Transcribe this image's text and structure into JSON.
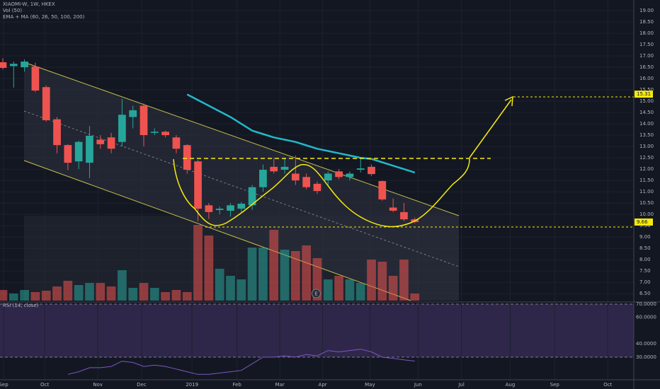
{
  "chart_data": {
    "type": "candlestick",
    "title": "XIAOMI-W, 1W, HKEX",
    "volume_label": "Vol (50)",
    "ema_label": "EMA + MA (60, 26, 50, 100, 200)",
    "rsi_label": "RSI (14, close)",
    "up_color": "#26a69a",
    "down_color": "#ef5350",
    "ema_color": "#22b8c8",
    "rsi_color": "#7e57c2",
    "candles": {
      "open": [
        16.72,
        16.55,
        16.5,
        16.53,
        15.62,
        14.2,
        13.06,
        12.34,
        12.28,
        13.3,
        13.4,
        13.2,
        14.3,
        14.8,
        13.6,
        13.65,
        13.4,
        13.06,
        12.34,
        10.4,
        10.19,
        10.16,
        10.25,
        10.4,
        11.2,
        12.1,
        11.97,
        11.8,
        11.65,
        11.35,
        11.5,
        11.9,
        11.65,
        11.97,
        12.1,
        11.47,
        10.3,
        10.1,
        9.78
      ],
      "high": [
        16.9,
        16.75,
        16.85,
        16.7,
        15.7,
        14.3,
        13.1,
        13.25,
        13.9,
        13.5,
        13.6,
        15.1,
        14.8,
        14.9,
        13.8,
        13.7,
        13.5,
        13.1,
        12.4,
        10.5,
        10.35,
        10.5,
        10.55,
        11.3,
        12.2,
        12.5,
        12.5,
        12.6,
        11.8,
        11.45,
        11.9,
        12.0,
        11.9,
        12.5,
        12.2,
        11.5,
        10.7,
        10.5,
        9.85
      ],
      "low": [
        16.4,
        15.6,
        16.3,
        15.4,
        14.1,
        12.7,
        11.95,
        12.0,
        11.6,
        12.9,
        12.7,
        13.0,
        13.8,
        13.0,
        13.5,
        13.4,
        12.7,
        11.8,
        9.7,
        9.8,
        10.0,
        9.9,
        10.1,
        10.2,
        11.0,
        11.8,
        11.8,
        11.3,
        11.1,
        10.9,
        11.3,
        11.55,
        11.5,
        11.85,
        11.7,
        10.6,
        10.1,
        9.7,
        9.6
      ],
      "close": [
        16.47,
        16.65,
        16.75,
        15.47,
        14.16,
        13.06,
        12.28,
        13.2,
        13.47,
        13.1,
        12.9,
        14.4,
        14.6,
        13.5,
        13.65,
        13.5,
        12.9,
        11.97,
        10.25,
        10.1,
        10.25,
        10.4,
        10.47,
        11.2,
        11.97,
        11.9,
        12.1,
        11.5,
        11.2,
        11.03,
        11.8,
        11.65,
        11.8,
        12.03,
        11.78,
        10.66,
        10.16,
        9.78,
        9.66
      ]
    },
    "volume": [
      15,
      10,
      15,
      12,
      14,
      20,
      28,
      22,
      25,
      25,
      20,
      43,
      18,
      25,
      18,
      12,
      15,
      12,
      107,
      92,
      45,
      35,
      30,
      75,
      75,
      100,
      72,
      70,
      78,
      60,
      30,
      35,
      30,
      25,
      58,
      55,
      35,
      58,
      10
    ],
    "vlim": [
      0,
      110
    ],
    "ema": [
      null,
      null,
      null,
      null,
      null,
      null,
      null,
      null,
      null,
      null,
      null,
      null,
      null,
      null,
      null,
      null,
      null,
      15.3,
      15.05,
      14.8,
      14.55,
      14.3,
      14.0,
      13.7,
      13.55,
      13.4,
      13.3,
      13.2,
      13.05,
      12.9,
      12.8,
      12.7,
      12.6,
      12.5,
      12.45,
      12.3,
      12.15,
      12.0,
      11.85
    ],
    "rsi": [
      null,
      null,
      null,
      null,
      null,
      null,
      17,
      19,
      22,
      22,
      23,
      27,
      26,
      23,
      24,
      23,
      21,
      19,
      17,
      17,
      18,
      19,
      20,
      25,
      30,
      30,
      31,
      30,
      32,
      31,
      35,
      34,
      35,
      36,
      34,
      30,
      29,
      28,
      27
    ],
    "xlim": [
      -0.26,
      58.2
    ],
    "xticks": [
      {
        "value": 0.07,
        "label": "Sep"
      },
      {
        "value": 3.86,
        "label": "Oct"
      },
      {
        "value": 8.76,
        "label": "Nov"
      },
      {
        "value": 12.8,
        "label": "Dec"
      },
      {
        "value": 17.45,
        "label": "2019"
      },
      {
        "value": 21.6,
        "label": "Feb"
      },
      {
        "value": 25.55,
        "label": "Mar"
      },
      {
        "value": 29.5,
        "label": "Apr"
      },
      {
        "value": 33.86,
        "label": "May"
      },
      {
        "value": 38.3,
        "label": "Jun"
      },
      {
        "value": 42.3,
        "label": "Jul"
      },
      {
        "value": 46.8,
        "label": "Aug"
      },
      {
        "value": 50.9,
        "label": "Sep"
      },
      {
        "value": 55.8,
        "label": "Oct"
      }
    ],
    "ylim": [
      6.19,
      19.47
    ],
    "yticks": [
      {
        "value": 6.5,
        "label": "6.50"
      },
      {
        "value": 7,
        "label": "7.00"
      },
      {
        "value": 7.5,
        "label": "7.50"
      },
      {
        "value": 8,
        "label": "8.00"
      },
      {
        "value": 8.5,
        "label": "8.50"
      },
      {
        "value": 9,
        "label": "9.00"
      },
      {
        "value": 9.5,
        "label": "9.50"
      },
      {
        "value": 10,
        "label": "10.00"
      },
      {
        "value": 10.5,
        "label": "10.50"
      },
      {
        "value": 11,
        "label": "11.00"
      },
      {
        "value": 11.5,
        "label": "11.50"
      },
      {
        "value": 12,
        "label": "12.00"
      },
      {
        "value": 12.5,
        "label": "12.50"
      },
      {
        "value": 13,
        "label": "13.00"
      },
      {
        "value": 13.5,
        "label": "13.50"
      },
      {
        "value": 14,
        "label": "14.00"
      },
      {
        "value": 14.5,
        "label": "14.50"
      },
      {
        "value": 15,
        "label": "15.00"
      },
      {
        "value": 15.5,
        "label": "15.50"
      },
      {
        "value": 16,
        "label": "16.00"
      },
      {
        "value": 16.5,
        "label": "16.50"
      },
      {
        "value": 17,
        "label": "17.00"
      },
      {
        "value": 17.5,
        "label": "17.50"
      },
      {
        "value": 18,
        "label": "18.00"
      },
      {
        "value": 18.5,
        "label": "18.50"
      },
      {
        "value": 19,
        "label": "19.00"
      }
    ],
    "rsi_lim": [
      12.9,
      71.07
    ],
    "rsi_ticks": [
      {
        "value": 70,
        "label": "70.0000"
      },
      {
        "value": 60,
        "label": "60.0000"
      },
      {
        "value": 40,
        "label": "40.0000"
      },
      {
        "value": 30,
        "label": "30.0000"
      }
    ],
    "price_tags": [
      {
        "value": 15.31,
        "label": "15.31"
      },
      {
        "value": 9.66,
        "label": "9.66"
      }
    ],
    "events": [
      {
        "index": 28.9,
        "label": "E"
      }
    ]
  }
}
